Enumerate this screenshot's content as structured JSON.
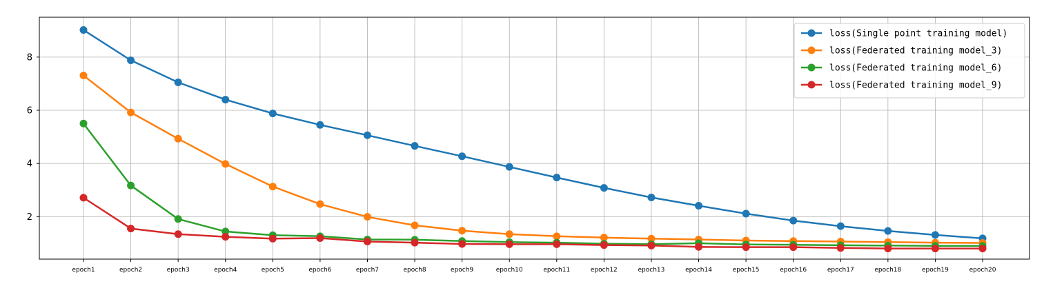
{
  "chart_data": {
    "type": "line",
    "title": "",
    "xlabel": "",
    "ylabel": "",
    "categories": [
      "epoch1",
      "epoch2",
      "epoch3",
      "epoch4",
      "epoch5",
      "epoch6",
      "epoch7",
      "epoch8",
      "epoch9",
      "epoch10",
      "epoch11",
      "epoch12",
      "epoch13",
      "epoch14",
      "epoch15",
      "epoch16",
      "epoch17",
      "epoch18",
      "epoch19",
      "epoch20"
    ],
    "ylim": [
      0.4,
      9.5
    ],
    "yticks": [
      2,
      4,
      6,
      8
    ],
    "grid": true,
    "legend_position": "top-right",
    "series": [
      {
        "name": "loss(Single point training model)",
        "color": "#1f77b4",
        "values": [
          9.02,
          7.88,
          7.05,
          6.4,
          5.88,
          5.45,
          5.06,
          4.66,
          4.27,
          3.87,
          3.47,
          3.08,
          2.72,
          2.41,
          2.11,
          1.85,
          1.64,
          1.46,
          1.31,
          1.18
        ]
      },
      {
        "name": "loss(Federated training model_3)",
        "color": "#ff7f0e",
        "values": [
          7.31,
          5.92,
          4.93,
          3.98,
          3.13,
          2.47,
          1.99,
          1.67,
          1.47,
          1.34,
          1.26,
          1.21,
          1.17,
          1.14,
          1.1,
          1.08,
          1.06,
          1.04,
          1.02,
          1.01
        ]
      },
      {
        "name": "loss(Federated training model_6)",
        "color": "#2ca02c",
        "values": [
          5.5,
          3.17,
          1.91,
          1.44,
          1.3,
          1.26,
          1.14,
          1.13,
          1.08,
          1.04,
          1.02,
          0.98,
          0.96,
          1.0,
          0.95,
          0.94,
          0.92,
          0.91,
          0.9,
          0.9
        ]
      },
      {
        "name": "loss(Federated training model_9)",
        "color": "#d62728",
        "values": [
          2.71,
          1.55,
          1.34,
          1.24,
          1.17,
          1.19,
          1.06,
          1.02,
          0.97,
          0.96,
          0.96,
          0.93,
          0.91,
          0.86,
          0.85,
          0.85,
          0.82,
          0.8,
          0.8,
          0.8
        ]
      }
    ]
  }
}
